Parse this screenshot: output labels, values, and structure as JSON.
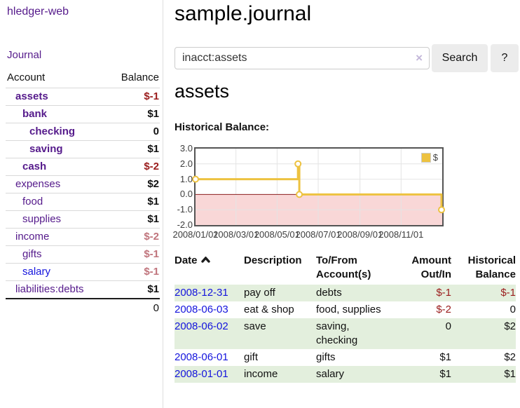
{
  "app": {
    "brand": "hledger-web",
    "nav_journal": "Journal"
  },
  "colors": {
    "link_visited": "#551a8b",
    "link_unvisited": "#1414dd",
    "negative_strong": "#9a1c1c",
    "negative_soft": "#c0747c",
    "row_shade": "#e3efdd",
    "button_bg": "#ececec",
    "clear_icon": "#c3b7d9"
  },
  "sidebar": {
    "table_header": {
      "account": "Account",
      "balance": "Balance"
    },
    "accounts": [
      {
        "name": "assets",
        "balance": "$-1",
        "indent": 0,
        "matched": true,
        "neg": "strong"
      },
      {
        "name": "bank",
        "balance": "$1",
        "indent": 1,
        "matched": true
      },
      {
        "name": "checking",
        "balance": "0",
        "indent": 2,
        "matched": true
      },
      {
        "name": "saving",
        "balance": "$1",
        "indent": 2,
        "matched": true
      },
      {
        "name": "cash",
        "balance": "$-2",
        "indent": 1,
        "matched": true,
        "neg": "strong"
      },
      {
        "name": "expenses",
        "balance": "$2",
        "indent": 0
      },
      {
        "name": "food",
        "balance": "$1",
        "indent": 1
      },
      {
        "name": "supplies",
        "balance": "$1",
        "indent": 1
      },
      {
        "name": "income",
        "balance": "$-2",
        "indent": 0,
        "neg": "soft"
      },
      {
        "name": "gifts",
        "balance": "$-1",
        "indent": 1,
        "neg": "soft"
      },
      {
        "name": "salary",
        "balance": "$-1",
        "indent": 1,
        "neg": "soft",
        "unvisited": true
      },
      {
        "name": "liabilities:debts",
        "balance": "$1",
        "indent": 0
      }
    ],
    "total": "0"
  },
  "main": {
    "title": "sample.journal",
    "search": {
      "value": "inacct:assets",
      "clear_icon": "×",
      "button_label": "Search",
      "help_label": "?"
    },
    "account_heading": "assets",
    "chart_label": "Historical Balance:"
  },
  "chart_data": {
    "type": "line",
    "step": true,
    "title": "Historical Balance",
    "series": [
      {
        "name": "$",
        "color": "#edc240",
        "points": [
          [
            "2008/01/01",
            1
          ],
          [
            "2008/06/01",
            2
          ],
          [
            "2008/06/03",
            0
          ],
          [
            "2008/12/31",
            -1
          ]
        ]
      }
    ],
    "xlim": [
      "2008/01/01",
      "2009/01/01"
    ],
    "ylim": [
      -2.0,
      3.0
    ],
    "xticks": [
      "2008/01/01",
      "2008/03/01",
      "2008/05/01",
      "2008/07/01",
      "2008/09/01",
      "2008/11/01"
    ],
    "yticks": [
      "3.0",
      "2.0",
      "1.0",
      "0.0",
      "-1.0",
      "-2.0"
    ],
    "legend": "$",
    "legend_position": "top-right",
    "grid": true,
    "colors": {
      "line": "#edc240",
      "negative_fill": "#f9d7d7",
      "zero_line": "#8b1e1e",
      "grid": "#e4e4e4",
      "border": "#545454"
    }
  },
  "register": {
    "headers": [
      "Date",
      "Description",
      "To/From Account(s)",
      "Amount Out/In",
      "Historical Balance"
    ],
    "sort": {
      "column": "Date",
      "direction": "ascending"
    },
    "rows": [
      {
        "date": "2008-12-31",
        "description": "pay off",
        "accounts": "debts",
        "amount": "$-1",
        "amount_neg": true,
        "balance": "$-1",
        "balance_neg": true,
        "shaded": true
      },
      {
        "date": "2008-06-03",
        "description": "eat & shop",
        "accounts": "food, supplies",
        "amount": "$-2",
        "amount_neg": true,
        "balance": "0",
        "balance_neg": false,
        "shaded": false
      },
      {
        "date": "2008-06-02",
        "description": "save",
        "accounts": "saving, checking",
        "amount": "0",
        "amount_neg": false,
        "balance": "$2",
        "balance_neg": false,
        "shaded": true
      },
      {
        "date": "2008-06-01",
        "description": "gift",
        "accounts": "gifts",
        "amount": "$1",
        "amount_neg": false,
        "balance": "$2",
        "balance_neg": false,
        "shaded": false
      },
      {
        "date": "2008-01-01",
        "description": "income",
        "accounts": "salary",
        "amount": "$1",
        "amount_neg": false,
        "balance": "$1",
        "balance_neg": false,
        "shaded": true
      }
    ]
  }
}
